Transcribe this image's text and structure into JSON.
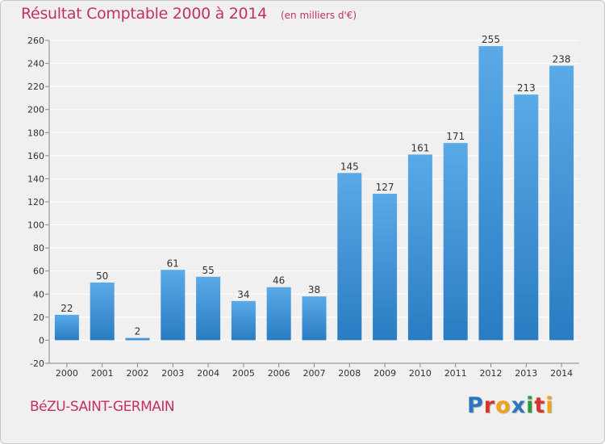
{
  "header": {
    "title": "Résultat Comptable 2000 à 2014",
    "unit": "(en milliers d'€)"
  },
  "footer": {
    "commune": "BéZU-SAINT-GERMAIN",
    "logo_text": "Proxiti",
    "logo_colors": [
      "#2f74c0",
      "#d8332e",
      "#f0a21c",
      "#2f74c0",
      "#2a9a3a",
      "#d8332e",
      "#f0a21c"
    ]
  },
  "colors": {
    "title": "#c4325c",
    "bar_light": "#5aaae8",
    "bar_dark": "#2a7cc2",
    "grid": "#ffffff",
    "background": "#f0f0f0"
  },
  "chart_data": {
    "type": "bar",
    "title": "Résultat Comptable 2000 à 2014",
    "xlabel": "",
    "ylabel": "",
    "categories": [
      "2000",
      "2001",
      "2002",
      "2003",
      "2004",
      "2005",
      "2006",
      "2007",
      "2008",
      "2009",
      "2010",
      "2011",
      "2012",
      "2013",
      "2014"
    ],
    "values": [
      22,
      50,
      2,
      61,
      55,
      34,
      46,
      38,
      145,
      127,
      161,
      171,
      255,
      213,
      238
    ],
    "data_labels": [
      "22",
      "50",
      "2",
      "61",
      "55",
      "34",
      "46",
      "38",
      "145",
      "127",
      "161",
      "171",
      "255",
      "213",
      "238"
    ],
    "ylim": [
      -20,
      260
    ],
    "yticks": [
      -20,
      0,
      20,
      40,
      60,
      80,
      100,
      120,
      140,
      160,
      180,
      200,
      220,
      240,
      260
    ],
    "grid": true,
    "legend": "none"
  }
}
